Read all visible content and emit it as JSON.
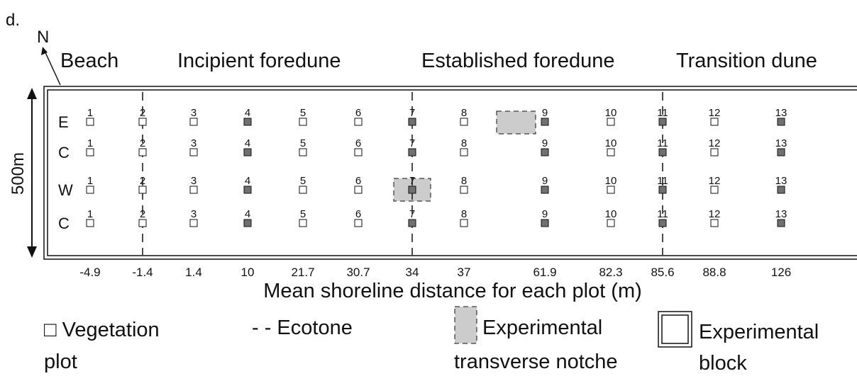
{
  "panel_label": "d.",
  "north": "N",
  "zones": [
    "Beach",
    "Incipient foredune",
    "Established foredune",
    "Transition dune"
  ],
  "block_size": "500m",
  "rows": [
    {
      "label": "E",
      "plots": [
        "1",
        "2",
        "3",
        "4",
        "5",
        "6",
        "7",
        "8",
        "9",
        "10",
        "11",
        "12",
        "13"
      ]
    },
    {
      "label": "C",
      "plots": [
        "1",
        "2",
        "3",
        "4",
        "5",
        "6",
        "7",
        "8",
        "9",
        "10",
        "11",
        "12",
        "13"
      ]
    },
    {
      "label": "W",
      "plots": [
        "1",
        "2",
        "3",
        "4",
        "5",
        "6",
        "7",
        "8",
        "9",
        "10",
        "11",
        "12",
        "13"
      ]
    },
    {
      "label": "C",
      "plots": [
        "1",
        "2",
        "3",
        "4",
        "5",
        "6",
        "7",
        "8",
        "9",
        "10",
        "11",
        "12",
        "13"
      ]
    }
  ],
  "plot_colors": [
    "#ffffff",
    "#ffffff",
    "#ffffff",
    "#707070",
    "#ffffff",
    "#ffffff",
    "#707070",
    "#ffffff",
    "#707070",
    "#ffffff",
    "#707070",
    "#ffffff",
    "#707070"
  ],
  "distances": [
    "-4.9",
    "-1.4",
    "1.4",
    "10",
    "21.7",
    "30.7",
    "34",
    "37",
    "61.9",
    "82.3",
    "85.6",
    "88.8",
    "126"
  ],
  "axis_title": "Mean shoreline distance for each plot (m)",
  "legend": {
    "vegetation_plot": [
      "□ Vegetation",
      "plot"
    ],
    "ecotone": "- - Ecotone",
    "notch": [
      "Experimental",
      "transverse notche"
    ],
    "block": [
      "Experimental",
      "block"
    ]
  }
}
